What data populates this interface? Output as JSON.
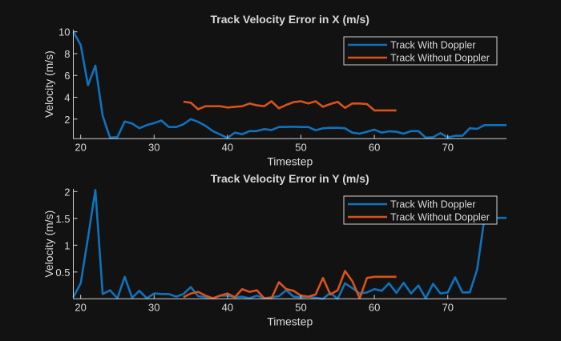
{
  "colors": {
    "background": "#121212",
    "axis": "#d0d0d0",
    "with_doppler": "#0f72bd",
    "without_doppler": "#d95319"
  },
  "chart_data": [
    {
      "type": "line",
      "title": "Track Velocity Error in X (m/s)",
      "xlabel": "Timestep",
      "ylabel": "Velocity (m/s)",
      "xlim": [
        19,
        78
      ],
      "ylim": [
        0.2,
        10.2
      ],
      "xticks": [
        20,
        30,
        40,
        50,
        60,
        70
      ],
      "yticks": [
        2,
        4,
        6,
        8,
        10
      ],
      "legend": "top-right",
      "grid": false,
      "series": [
        {
          "name": "Track With Doppler",
          "x_start": 19,
          "values": [
            10.0,
            8.8,
            5.1,
            6.9,
            2.3,
            0.3,
            0.35,
            1.78,
            1.6,
            1.16,
            1.45,
            1.63,
            1.87,
            1.28,
            1.27,
            1.53,
            2.0,
            1.75,
            1.38,
            0.9,
            0.59,
            0.27,
            0.76,
            0.61,
            0.9,
            0.9,
            1.08,
            1.0,
            1.27,
            1.28,
            1.3,
            1.27,
            1.27,
            0.98,
            1.16,
            1.2,
            1.2,
            1.16,
            0.76,
            0.66,
            0.84,
            1.04,
            0.76,
            0.88,
            0.84,
            0.66,
            0.9,
            0.9,
            0.3,
            0.34,
            0.71,
            0.32,
            0.47,
            0.47,
            1.16,
            1.1,
            1.45,
            1.45,
            1.45,
            1.45
          ]
        },
        {
          "name": "Track Without Doppler",
          "x_start": 34,
          "values": [
            3.6,
            3.5,
            2.9,
            3.18,
            3.18,
            3.18,
            3.06,
            3.13,
            3.18,
            3.43,
            3.26,
            3.18,
            3.63,
            2.99,
            3.3,
            3.55,
            3.63,
            3.43,
            3.63,
            3.13,
            3.38,
            3.58,
            3.03,
            3.43,
            3.43,
            3.38,
            2.8,
            2.8,
            2.8,
            2.8
          ]
        }
      ]
    },
    {
      "type": "line",
      "title": "Track Velocity Error in Y (m/s)",
      "xlabel": "Timestep",
      "ylabel": "Velocity (m/s)",
      "xlim": [
        19,
        78
      ],
      "ylim": [
        0,
        2.05
      ],
      "xticks": [
        20,
        30,
        40,
        50,
        60,
        70
      ],
      "yticks": [
        0.5,
        1,
        1.5,
        2
      ],
      "legend": "top-right",
      "grid": false,
      "series": [
        {
          "name": "Track With Doppler",
          "x_start": 19,
          "values": [
            0.03,
            0.29,
            1.14,
            2.03,
            0.09,
            0.16,
            0.01,
            0.41,
            0.02,
            0.15,
            0.01,
            0.1,
            0.09,
            0.09,
            0.04,
            0.09,
            0.22,
            0.05,
            0.03,
            0.01,
            0.06,
            0.06,
            0.03,
            0.04,
            0.01,
            0.06,
            0.01,
            0.03,
            0.05,
            0.16,
            0.04,
            0.03,
            0.04,
            0.02,
            0.0,
            0.11,
            0.0,
            0.29,
            0.2,
            0.1,
            0.12,
            0.18,
            0.15,
            0.29,
            0.11,
            0.3,
            0.1,
            0.25,
            0.01,
            0.28,
            0.1,
            0.12,
            0.4,
            0.12,
            0.12,
            0.55,
            1.51,
            1.51,
            1.51,
            1.51
          ]
        },
        {
          "name": "Track Without Doppler",
          "x_start": 34,
          "values": [
            0.03,
            0.1,
            0.13,
            0.06,
            0.01,
            0.06,
            0.1,
            0.03,
            0.18,
            0.13,
            0.16,
            0.01,
            0.01,
            0.31,
            0.18,
            0.15,
            0.06,
            0.04,
            0.08,
            0.39,
            0.08,
            0.16,
            0.52,
            0.33,
            0.01,
            0.39,
            0.41,
            0.41,
            0.41,
            0.41
          ]
        }
      ]
    }
  ]
}
